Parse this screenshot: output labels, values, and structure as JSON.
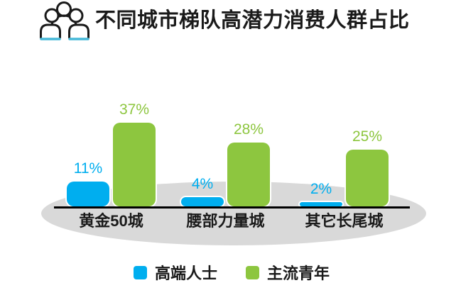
{
  "header": {
    "title": "不同城市梯队高潜力消费人群占比"
  },
  "chart_data": {
    "type": "bar",
    "title": "不同城市梯队高潜力消费人群占比",
    "categories": [
      "黄金50城",
      "腰部力量城",
      "其它长尾城"
    ],
    "series": [
      {
        "name": "高端人士",
        "color": "#00AEEF",
        "values": [
          11,
          4,
          2
        ]
      },
      {
        "name": "主流青年",
        "color": "#8DC63F",
        "values": [
          37,
          28,
          25
        ]
      }
    ],
    "value_suffix": "%",
    "xlabel": "",
    "ylabel": "",
    "ylim": [
      0,
      40
    ],
    "grid": false,
    "legend_position": "bottom",
    "data_label_style": "colored-to-match-series"
  },
  "legend": {
    "items": [
      {
        "label": "高端人士",
        "color": "#00AEEF"
      },
      {
        "label": "主流青年",
        "color": "#8DC63F"
      }
    ]
  },
  "colors": {
    "premium_blue": "#00AEEF",
    "youth_green": "#8DC63F",
    "shadow_gray": "#D9D9D9",
    "icon_accent_cyan": "#45B8D8",
    "axis_black": "#000000",
    "text_black": "#1A1A1A"
  }
}
